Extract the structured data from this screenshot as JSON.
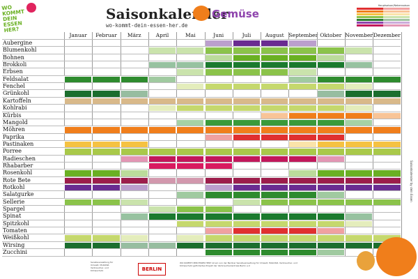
{
  "logo": {
    "text": "WO KOMMT DEIN ESSEN HER?"
  },
  "header": {
    "title": "Saisonkalender",
    "category": "Gemüse",
    "subtitle": "wo-kommt-dein-essen-her.de"
  },
  "legend": {
    "title": "Hauptsaison/Nebensaison",
    "colors": [
      "#e03030",
      "#f07e1b",
      "#f5c242",
      "#8bc34a",
      "#2e7d32",
      "#8e44ad",
      "#c2185b"
    ]
  },
  "months": [
    "Januar",
    "Februar",
    "März",
    "April",
    "Mai",
    "Juni",
    "Juli",
    "August",
    "September",
    "Oktober",
    "November",
    "Dezember"
  ],
  "vegetables": [
    {
      "name": "Aubergine",
      "color": "#6a2c91",
      "main": [
        7,
        8
      ],
      "side": [
        6,
        9
      ]
    },
    {
      "name": "Blumenkohl",
      "color": "#8bc34a",
      "main": [
        6,
        7,
        8,
        9,
        10
      ],
      "side": [
        4,
        5,
        11
      ]
    },
    {
      "name": "Bohnen",
      "color": "#6ab023",
      "main": [
        7,
        8,
        9
      ],
      "side": [
        6,
        10
      ]
    },
    {
      "name": "Brokkoli",
      "color": "#1b7a2e",
      "main": [
        6,
        7,
        8,
        9,
        10
      ],
      "side": [
        4,
        5,
        11
      ]
    },
    {
      "name": "Erbsen",
      "color": "#8bc34a",
      "main": [
        6,
        7,
        8
      ],
      "side": [
        5,
        9
      ]
    },
    {
      "name": "Feldsalat",
      "color": "#2e8b2e",
      "main": [
        1,
        2,
        3,
        10,
        11,
        12
      ],
      "side": [
        4,
        9
      ]
    },
    {
      "name": "Fenchel",
      "color": "#c5d86d",
      "main": [
        6,
        7,
        8,
        9,
        10
      ],
      "side": [
        5,
        11
      ]
    },
    {
      "name": "Grünkohl",
      "color": "#1b6e2e",
      "main": [
        1,
        2,
        11,
        12
      ],
      "side": [
        3,
        10
      ]
    },
    {
      "name": "Kartoffeln",
      "color": "#d9b98a",
      "main": [
        1,
        2,
        3,
        4,
        5,
        6,
        7,
        8,
        9,
        10,
        11,
        12
      ],
      "side": []
    },
    {
      "name": "Kohlrabi",
      "color": "#c5d86d",
      "main": [
        5,
        6,
        7,
        8,
        9,
        10
      ],
      "side": [
        4,
        11
      ]
    },
    {
      "name": "Kürbis",
      "color": "#f07e1b",
      "main": [
        9,
        10,
        11
      ],
      "side": [
        8,
        12
      ]
    },
    {
      "name": "Mangold",
      "color": "#3a9a3a",
      "main": [
        6,
        7,
        8,
        9,
        10
      ],
      "side": [
        5,
        11
      ]
    },
    {
      "name": "Möhren",
      "color": "#f07e1b",
      "main": [
        1,
        2,
        3,
        4,
        5,
        6,
        7,
        8,
        9,
        10,
        11,
        12
      ],
      "side": []
    },
    {
      "name": "Paprika",
      "color": "#e03030",
      "main": [
        7,
        8,
        9,
        10
      ],
      "side": [
        6
      ]
    },
    {
      "name": "Pastinaken",
      "color": "#f5c242",
      "main": [
        1,
        2,
        3,
        10,
        11,
        12
      ],
      "side": [
        9
      ]
    },
    {
      "name": "Porree",
      "color": "#a9c94a",
      "main": [
        1,
        2,
        3,
        4,
        5,
        6,
        7,
        8,
        9,
        10,
        11,
        12
      ],
      "side": []
    },
    {
      "name": "Radieschen",
      "color": "#c2185b",
      "main": [
        4,
        5,
        6,
        7,
        8,
        9
      ],
      "side": [
        3,
        10
      ]
    },
    {
      "name": "Rhabarber",
      "color": "#d81b60",
      "main": [
        4,
        5,
        6
      ],
      "side": []
    },
    {
      "name": "Rosenkohl",
      "color": "#6ab023",
      "main": [
        1,
        2,
        10,
        11,
        12
      ],
      "side": [
        3,
        9
      ]
    },
    {
      "name": "Rote Bete",
      "color": "#9c1d4b",
      "main": [
        1,
        2,
        3,
        6,
        7,
        8,
        9,
        10,
        11,
        12
      ],
      "side": [
        4,
        5
      ]
    },
    {
      "name": "Rotkohl",
      "color": "#6a2c91",
      "main": [
        1,
        2,
        7,
        8,
        9,
        10,
        11,
        12
      ],
      "side": [
        3,
        6
      ]
    },
    {
      "name": "Salatgurke",
      "color": "#2e8b2e",
      "main": [
        6,
        7,
        8,
        9
      ],
      "side": [
        5,
        10
      ]
    },
    {
      "name": "Sellerie",
      "color": "#8bc34a",
      "main": [
        1,
        2,
        8,
        9,
        10,
        11,
        12
      ],
      "side": [
        3,
        7
      ]
    },
    {
      "name": "Spargel",
      "color": "#8bc34a",
      "main": [
        5,
        6
      ],
      "side": [
        4
      ]
    },
    {
      "name": "Spinat",
      "color": "#1b7a2e",
      "main": [
        4,
        5,
        6,
        7,
        8,
        9,
        10
      ],
      "side": [
        3,
        11
      ]
    },
    {
      "name": "Spitzkohl",
      "color": "#c5d86d",
      "main": [
        5,
        6,
        7,
        8,
        9,
        10
      ],
      "side": [
        11
      ]
    },
    {
      "name": "Tomaten",
      "color": "#e03030",
      "main": [
        7,
        8,
        9
      ],
      "side": [
        6,
        10
      ]
    },
    {
      "name": "Weißkohl",
      "color": "#c5d86d",
      "main": [
        1,
        2,
        6,
        7,
        8,
        9,
        10,
        11,
        12
      ],
      "side": [
        3,
        5
      ]
    },
    {
      "name": "Wirsing",
      "color": "#1b6e2e",
      "main": [
        1,
        2,
        5,
        6,
        7,
        8,
        9,
        10,
        11,
        12
      ],
      "side": [
        3,
        4
      ]
    },
    {
      "name": "Zucchini",
      "color": "#2e8b2e",
      "main": [
        6,
        7,
        8,
        9
      ],
      "side": [
        10
      ]
    }
  ],
  "footer": {
    "left_text": "Senatsverwaltung für Umwelt, Mobilität, Verbraucher- und Klimaschutz",
    "berlin": "BERLIN",
    "right_text": "WO KOMMT DEIN ESSEN HER? ist ein von der Berliner Senatsverwaltung für Umwelt, Mobilität, Verbraucher- und Klimaschutz gefördertes Projekt der Verbraucherzentrale Berlin e.V."
  },
  "side_text": "Saisonkalender by dein Essen"
}
